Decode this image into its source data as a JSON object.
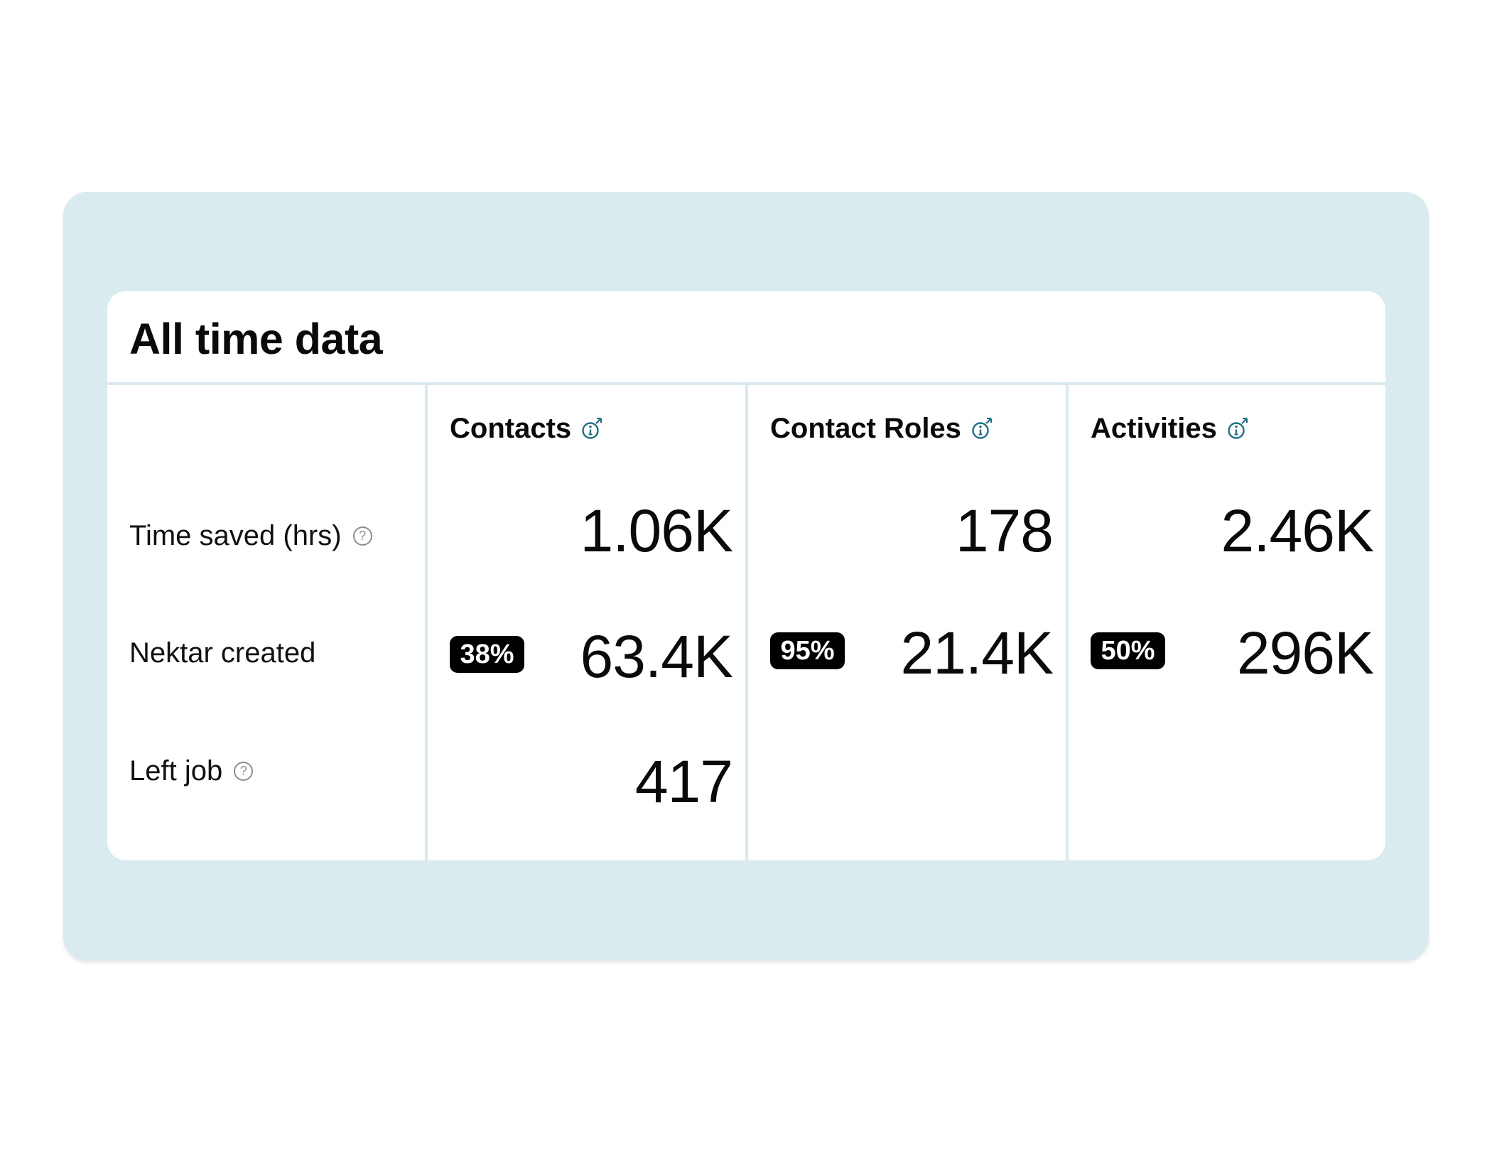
{
  "card": {
    "title": "All time data"
  },
  "rows": {
    "time_saved": "Time saved (hrs)",
    "nektar_created": "Nektar created",
    "left_job": "Left job",
    "help_glyph": "?"
  },
  "columns": [
    {
      "title": "Contacts",
      "time_saved": "1.06K",
      "nektar_created": "63.4K",
      "nektar_created_percent": "38%",
      "left_job": "417"
    },
    {
      "title": "Contact Roles",
      "time_saved": "178",
      "nektar_created": "21.4K",
      "nektar_created_percent": "95%",
      "left_job": ""
    },
    {
      "title": "Activities",
      "time_saved": "2.46K",
      "nektar_created": "296K",
      "nektar_created_percent": "50%",
      "left_job": ""
    }
  ],
  "colors": {
    "panel_background": "#daebef",
    "divider": "#dbe9ee",
    "info_icon": "#1f6f86",
    "badge_background": "#000000"
  },
  "icons": {
    "info": "info-icon",
    "help": "question-circle-icon"
  }
}
